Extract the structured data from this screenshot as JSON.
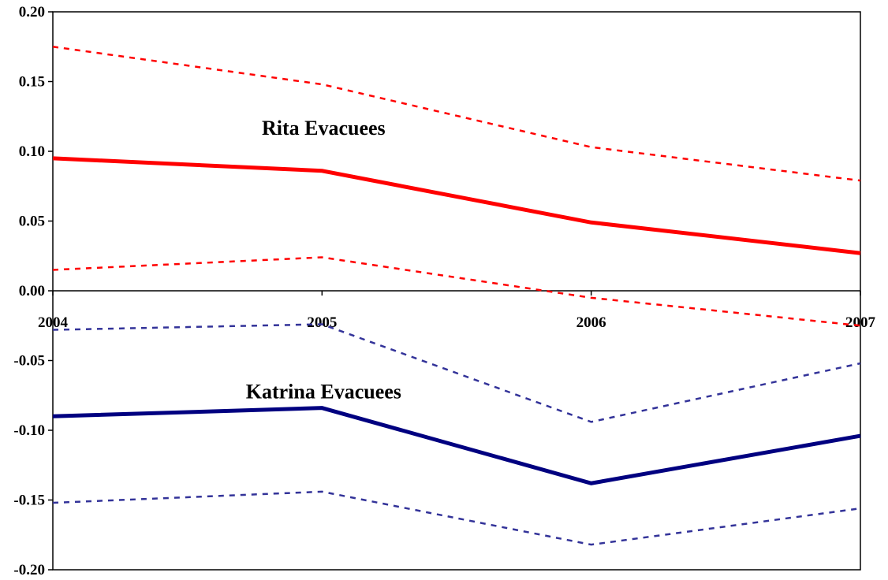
{
  "chart_data": {
    "type": "line",
    "title": "",
    "xlabel": "",
    "ylabel": "",
    "categories": [
      "2004",
      "2005",
      "2006",
      "2007"
    ],
    "ylim": [
      -0.2,
      0.2
    ],
    "yticks": [
      "0.20",
      "0.15",
      "0.10",
      "0.05",
      "0.00",
      "-0.05",
      "-0.10",
      "-0.15",
      "-0.20"
    ],
    "ytick_values": [
      0.2,
      0.15,
      0.1,
      0.05,
      0.0,
      -0.05,
      -0.1,
      -0.15,
      -0.2
    ],
    "grid": false,
    "legend": "none",
    "series": [
      {
        "key": "rita",
        "values": [
          0.095,
          0.086,
          0.049,
          0.027
        ],
        "color": "#ff0000",
        "style": "solid"
      },
      {
        "key": "rita_upper",
        "values": [
          0.175,
          0.148,
          0.103,
          0.079
        ],
        "color": "#ff0000",
        "style": "dashed"
      },
      {
        "key": "rita_lower",
        "values": [
          0.015,
          0.024,
          -0.005,
          -0.025
        ],
        "color": "#ff0000",
        "style": "dashed"
      },
      {
        "key": "katrina",
        "values": [
          -0.09,
          -0.084,
          -0.138,
          -0.104
        ],
        "color": "#000080",
        "style": "solid"
      },
      {
        "key": "katrina_upper",
        "values": [
          -0.028,
          -0.024,
          -0.094,
          -0.052
        ],
        "color": "#333399",
        "style": "dashed"
      },
      {
        "key": "katrina_lower",
        "values": [
          -0.152,
          -0.144,
          -0.182,
          -0.156
        ],
        "color": "#333399",
        "style": "dashed"
      }
    ],
    "annotations": [
      {
        "text": "Rita Evacuees",
        "x": "2005",
        "y": 0.117,
        "offset": "right"
      },
      {
        "text": "Katrina Evacuees",
        "x": "2005",
        "y": -0.072,
        "offset": "right"
      }
    ]
  }
}
